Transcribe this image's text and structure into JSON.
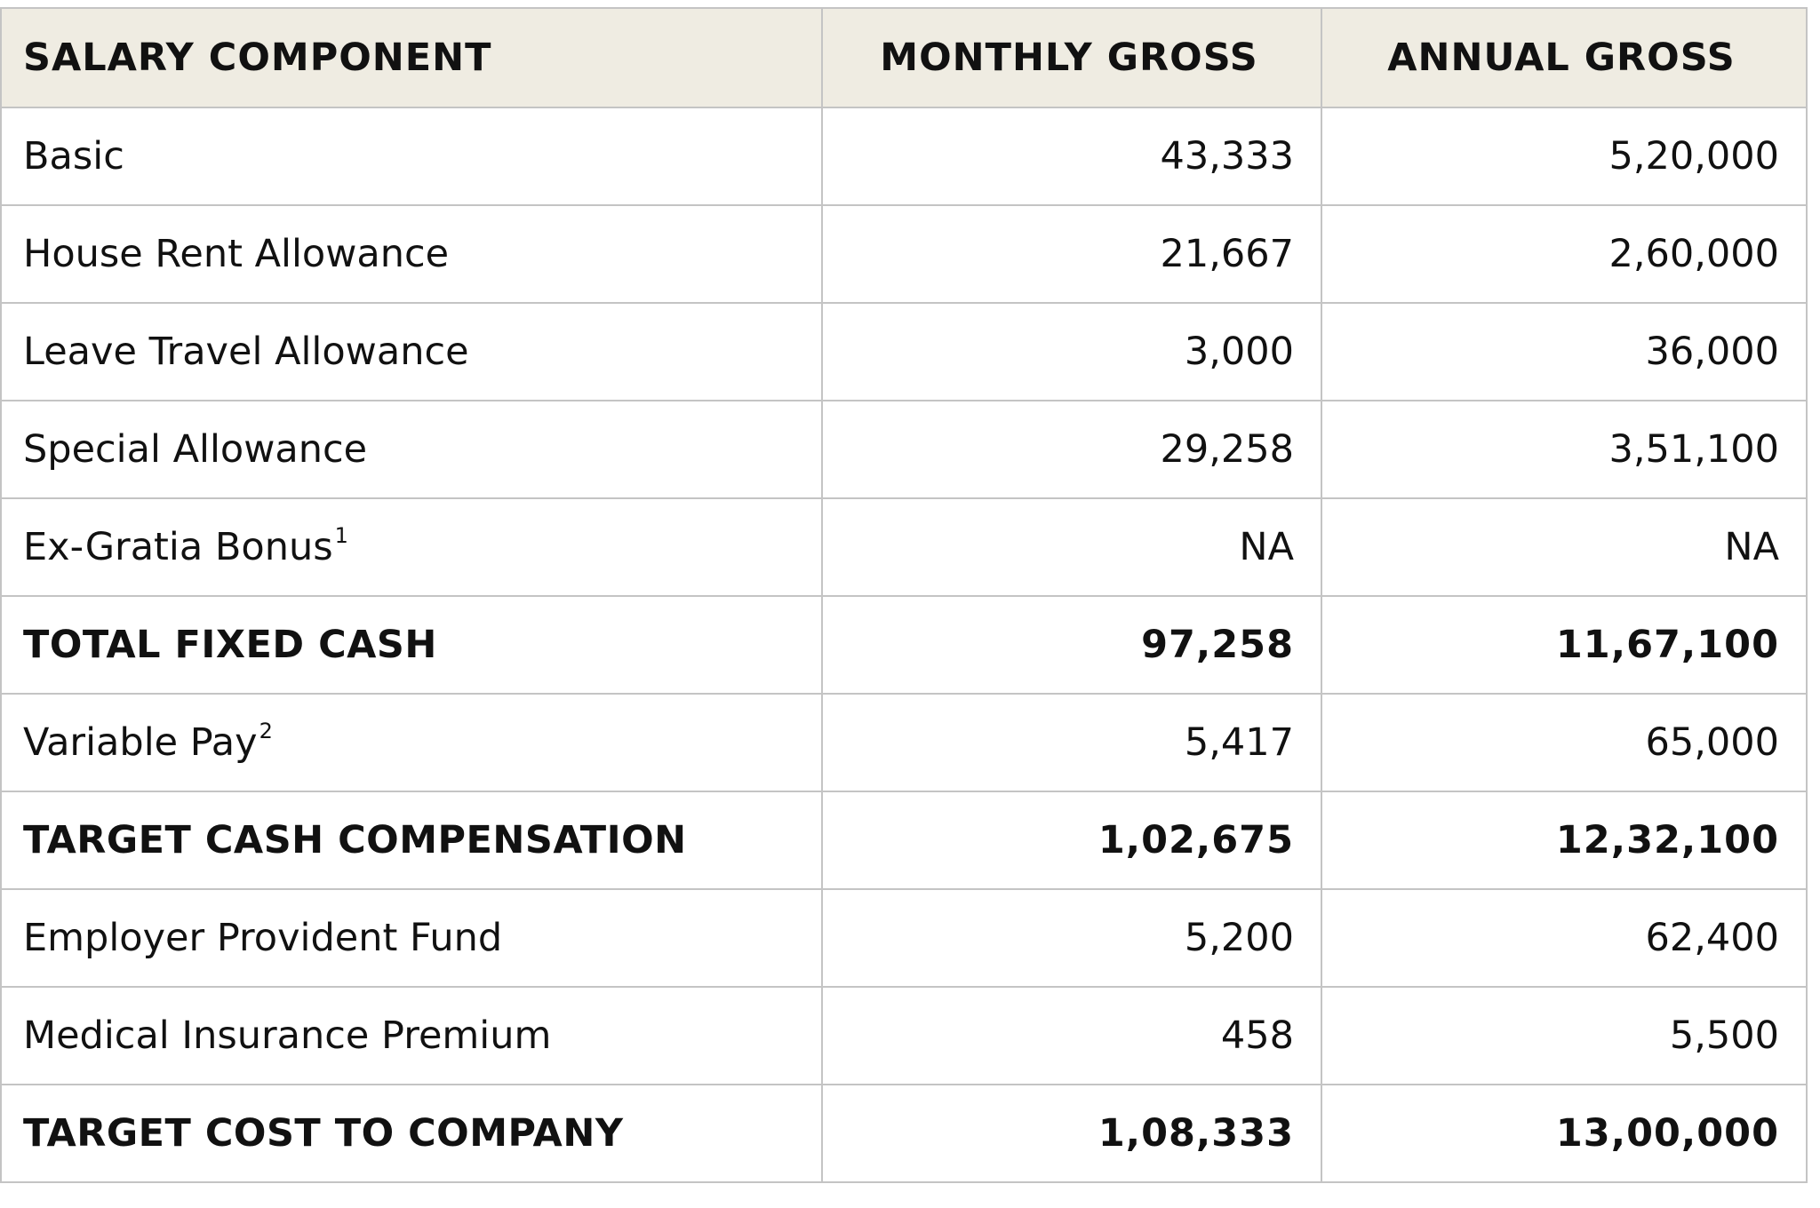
{
  "table": {
    "headers": [
      "SALARY COMPONENT",
      "MONTHLY GROSS",
      "ANNUAL GROSS"
    ],
    "rows": [
      {
        "label": "Basic",
        "sup": "",
        "monthly": "43,333",
        "annual": "5,20,000",
        "bold": false
      },
      {
        "label": "House Rent Allowance",
        "sup": "",
        "monthly": "21,667",
        "annual": "2,60,000",
        "bold": false
      },
      {
        "label": "Leave Travel Allowance",
        "sup": "",
        "monthly": "3,000",
        "annual": "36,000",
        "bold": false
      },
      {
        "label": "Special Allowance",
        "sup": "",
        "monthly": "29,258",
        "annual": "3,51,100",
        "bold": false
      },
      {
        "label": "Ex-Gratia Bonus",
        "sup": "1",
        "monthly": "NA",
        "annual": "NA",
        "bold": false
      },
      {
        "label": "TOTAL FIXED CASH",
        "sup": "",
        "monthly": "97,258",
        "annual": "11,67,100",
        "bold": true
      },
      {
        "label": "Variable Pay",
        "sup": "2",
        "monthly": "5,417",
        "annual": "65,000",
        "bold": false
      },
      {
        "label": "TARGET CASH COMPENSATION",
        "sup": "",
        "monthly": "1,02,675",
        "annual": "12,32,100",
        "bold": true
      },
      {
        "label": "Employer Provident Fund",
        "sup": "",
        "monthly": "5,200",
        "annual": "62,400",
        "bold": false
      },
      {
        "label": "Medical Insurance Premium",
        "sup": "",
        "monthly": "458",
        "annual": "5,500",
        "bold": false
      },
      {
        "label": "TARGET COST TO COMPANY",
        "sup": "",
        "monthly": "1,08,333",
        "annual": "13,00,000",
        "bold": true
      }
    ]
  },
  "colors": {
    "header_background": "#efece2",
    "border": "#c4c4c4",
    "text": "#111111"
  }
}
